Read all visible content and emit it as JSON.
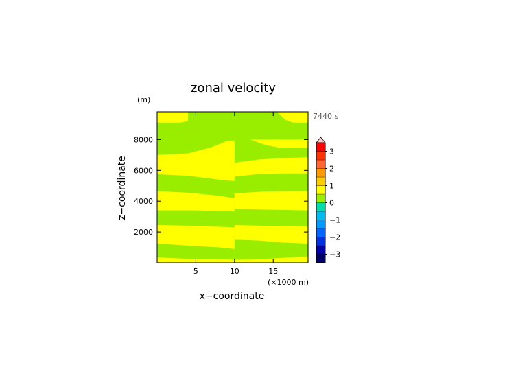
{
  "chart_data": {
    "type": "heatmap",
    "title": "zonal velocity",
    "xlabel": "x−coordinate",
    "ylabel": "z−coordinate",
    "x_unit": "(×1000 m)",
    "y_unit": "(m)",
    "time_label": "7440 s",
    "xlim": [
      0,
      19.5
    ],
    "ylim": [
      0,
      9800
    ],
    "x_ticks": [
      5,
      10,
      15
    ],
    "y_ticks": [
      2000,
      4000,
      6000,
      8000
    ],
    "x_tick_labels": [
      "5",
      "10",
      "15"
    ],
    "y_tick_labels": [
      "2000",
      "4000",
      "6000",
      "8000"
    ],
    "base_level_color": "#99ee00",
    "alt_level_color": "#ffff00",
    "bands": [
      {
        "level": "0 to 0.5",
        "color": "#ffff00",
        "bottom_left": [
          [
            0,
            0
          ],
          [
            10,
            0
          ],
          [
            10,
            0
          ]
        ],
        "bottom_right": [
          [
            10,
            0
          ],
          [
            19.5,
            0
          ]
        ],
        "top_left": [
          [
            0,
            350
          ],
          [
            4,
            260
          ],
          [
            8,
            230
          ],
          [
            10,
            200
          ]
        ],
        "top_right": [
          [
            10,
            200
          ],
          [
            13,
            220
          ],
          [
            16,
            320
          ],
          [
            19.5,
            420
          ]
        ]
      },
      {
        "level": "0 to 0.5",
        "color": "#ffff00",
        "bottom_left": [
          [
            0,
            1250
          ],
          [
            4,
            1120
          ],
          [
            8,
            1000
          ],
          [
            10,
            900
          ]
        ],
        "bottom_right": [
          [
            10,
            1500
          ],
          [
            13,
            1450
          ],
          [
            16,
            1320
          ],
          [
            19.5,
            1250
          ]
        ],
        "top_left": [
          [
            0,
            2450
          ],
          [
            5,
            2400
          ],
          [
            10,
            2300
          ]
        ],
        "top_right": [
          [
            10,
            2450
          ],
          [
            14,
            2400
          ],
          [
            19.5,
            2350
          ]
        ]
      },
      {
        "level": "0 to 0.5",
        "color": "#ffff00",
        "bottom_left": [
          [
            0,
            3400
          ],
          [
            5,
            3400
          ],
          [
            10,
            3350
          ]
        ],
        "bottom_right": [
          [
            10,
            3500
          ],
          [
            14,
            3450
          ],
          [
            19.5,
            3400
          ]
        ],
        "top_left": [
          [
            0,
            4650
          ],
          [
            4,
            4550
          ],
          [
            8,
            4350
          ],
          [
            10,
            4200
          ]
        ],
        "top_right": [
          [
            10,
            4500
          ],
          [
            13,
            4600
          ],
          [
            16,
            4650
          ],
          [
            19.5,
            4650
          ]
        ]
      },
      {
        "level": "0 to 0.5",
        "color": "#ffff00",
        "bottom_left": [
          [
            0,
            5750
          ],
          [
            4,
            5650
          ],
          [
            8,
            5400
          ],
          [
            10,
            5300
          ]
        ],
        "bottom_right": [
          [
            10,
            5600
          ],
          [
            13,
            5750
          ],
          [
            16,
            5800
          ],
          [
            19.5,
            5800
          ]
        ],
        "top_left": [
          [
            0,
            7000
          ],
          [
            4,
            7100
          ],
          [
            7,
            7500
          ],
          [
            9,
            7900
          ],
          [
            10,
            7900
          ]
        ],
        "top_right": [
          [
            10,
            6500
          ],
          [
            13,
            6700
          ],
          [
            16,
            6800
          ],
          [
            19.5,
            6850
          ]
        ]
      },
      {
        "level": "0 to 0.5",
        "color": "#ffff00",
        "bottom_left": [
          [
            0,
            9100
          ],
          [
            3,
            9100
          ],
          [
            4,
            9200
          ]
        ],
        "bottom_right": [
          [
            10,
            8000
          ],
          [
            12,
            8000
          ],
          [
            14,
            7650
          ],
          [
            16,
            7450
          ],
          [
            19.5,
            7450
          ]
        ],
        "top_left": [
          [
            0,
            9800
          ],
          [
            4,
            9800
          ]
        ],
        "top_right": [
          [
            10,
            8000
          ],
          [
            19.5,
            8000
          ]
        ]
      },
      {
        "level": "0 to 0.5",
        "color": "#ffff00",
        "bottom_left": [
          [
            8,
            9800
          ],
          [
            10,
            9800
          ]
        ],
        "bottom_right": [
          [
            15.5,
            9800
          ],
          [
            16.5,
            9300
          ],
          [
            17.5,
            9100
          ],
          [
            19.5,
            9100
          ]
        ],
        "top_left": [
          [
            8,
            9800
          ],
          [
            10,
            9800
          ]
        ],
        "top_right": [
          [
            15.5,
            9800
          ],
          [
            19.5,
            9800
          ]
        ]
      }
    ],
    "colorbar": {
      "tick_labels": [
        "3",
        "2",
        "1",
        "0",
        "−1",
        "−2",
        "−3"
      ],
      "tick_values": [
        3,
        2,
        1,
        0,
        -1,
        -2,
        -3
      ],
      "range": [
        -3.5,
        3.5
      ],
      "step": 0.5,
      "colors": [
        "#000066",
        "#0000aa",
        "#0033dd",
        "#0066ff",
        "#0099ff",
        "#00bbee",
        "#00ddaa",
        "#99ee00",
        "#ffff00",
        "#ffcc00",
        "#ff9900",
        "#ff6633",
        "#ff3300",
        "#ff0000",
        "#ffaaaa"
      ],
      "over_color": "#ffcccc"
    }
  }
}
